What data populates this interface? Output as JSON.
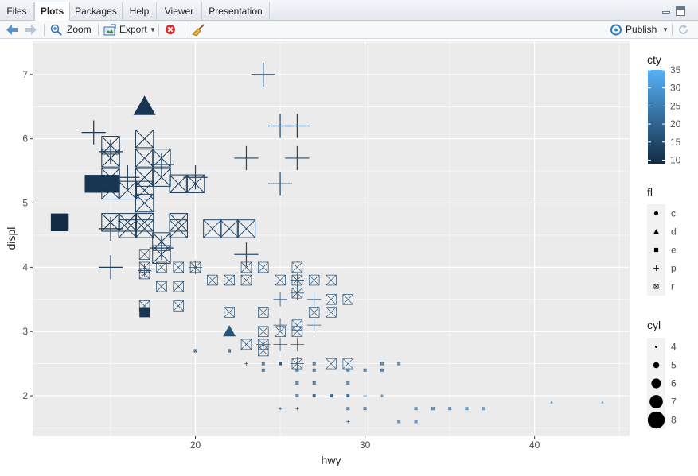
{
  "tabs": [
    {
      "label": "Files",
      "active": false
    },
    {
      "label": "Plots",
      "active": true
    },
    {
      "label": "Packages",
      "active": false
    },
    {
      "label": "Help",
      "active": false
    },
    {
      "label": "Viewer",
      "active": false
    },
    {
      "label": "Presentation",
      "active": false
    }
  ],
  "toolbar": {
    "zoom_label": "Zoom",
    "export_label": "Export",
    "publish_label": "Publish"
  },
  "colors": {
    "panel_bg": "#ebebeb",
    "grid": "#ffffff",
    "point_stroke": "#213f5c",
    "gradient_low": "#132b43",
    "gradient_high": "#56b1f7"
  },
  "chart_data": {
    "type": "scatter",
    "xlabel": "hwy",
    "ylabel": "displ",
    "xlim": [
      10.4,
      45.6
    ],
    "ylim": [
      1.37,
      7.53
    ],
    "xticks": [
      20,
      30,
      40
    ],
    "yticks": [
      2,
      3,
      4,
      5,
      6,
      7
    ],
    "grid": true,
    "legend_placement": "right",
    "color_legend": {
      "title": "cty",
      "ticks": [
        10,
        15,
        20,
        25,
        30,
        35
      ],
      "range": [
        9,
        35
      ]
    },
    "shape_legend": {
      "title": "fl",
      "entries": [
        {
          "label": "c",
          "shape": "circle"
        },
        {
          "label": "d",
          "shape": "triangle"
        },
        {
          "label": "e",
          "shape": "square"
        },
        {
          "label": "p",
          "shape": "plus"
        },
        {
          "label": "r",
          "shape": "square-x"
        }
      ]
    },
    "size_legend": {
      "title": "cyl",
      "entries": [
        4,
        5,
        6,
        7,
        8
      ]
    },
    "points": [
      {
        "x": 24,
        "y": 7.0,
        "cty": 15,
        "fl": "p",
        "cyl": 8
      },
      {
        "x": 17,
        "y": 6.5,
        "cty": 11,
        "fl": "d",
        "cyl": 8
      },
      {
        "x": 25,
        "y": 6.2,
        "cty": 16,
        "fl": "p",
        "cyl": 8
      },
      {
        "x": 26,
        "y": 6.2,
        "cty": 15,
        "fl": "p",
        "cyl": 8
      },
      {
        "x": 14,
        "y": 6.1,
        "cty": 12,
        "fl": "p",
        "cyl": 8
      },
      {
        "x": 17,
        "y": 6.0,
        "cty": 12,
        "fl": "r",
        "cyl": 8
      },
      {
        "x": 15,
        "y": 5.9,
        "cty": 11,
        "fl": "r",
        "cyl": 8
      },
      {
        "x": 15,
        "y": 5.7,
        "cty": 11,
        "fl": "r",
        "cyl": 8
      },
      {
        "x": 15,
        "y": 5.8,
        "cty": 12,
        "fl": "p",
        "cyl": 8
      },
      {
        "x": 17,
        "y": 5.7,
        "cty": 13,
        "fl": "r",
        "cyl": 8
      },
      {
        "x": 18,
        "y": 5.7,
        "cty": 13,
        "fl": "r",
        "cyl": 8
      },
      {
        "x": 18,
        "y": 5.6,
        "cty": 13,
        "fl": "p",
        "cyl": 8
      },
      {
        "x": 23,
        "y": 5.7,
        "cty": 15,
        "fl": "p",
        "cyl": 8
      },
      {
        "x": 26,
        "y": 5.7,
        "cty": 16,
        "fl": "p",
        "cyl": 8
      },
      {
        "x": 14,
        "y": 5.3,
        "cty": 11,
        "fl": "e",
        "cyl": 8
      },
      {
        "x": 15,
        "y": 5.3,
        "cty": 11,
        "fl": "e",
        "cyl": 8
      },
      {
        "x": 15,
        "y": 5.4,
        "cty": 12,
        "fl": "r",
        "cyl": 8
      },
      {
        "x": 15,
        "y": 5.2,
        "cty": 12,
        "fl": "r",
        "cyl": 8
      },
      {
        "x": 16,
        "y": 5.2,
        "cty": 12,
        "fl": "r",
        "cyl": 8
      },
      {
        "x": 16,
        "y": 5.4,
        "cty": 12,
        "fl": "p",
        "cyl": 8
      },
      {
        "x": 17,
        "y": 5.4,
        "cty": 12,
        "fl": "r",
        "cyl": 8
      },
      {
        "x": 17,
        "y": 5.2,
        "cty": 12,
        "fl": "r",
        "cyl": 8
      },
      {
        "x": 17,
        "y": 5.0,
        "cty": 13,
        "fl": "r",
        "cyl": 8
      },
      {
        "x": 18,
        "y": 5.4,
        "cty": 12,
        "fl": "r",
        "cyl": 8
      },
      {
        "x": 19,
        "y": 5.3,
        "cty": 13,
        "fl": "r",
        "cyl": 8
      },
      {
        "x": 20,
        "y": 5.3,
        "cty": 14,
        "fl": "r",
        "cyl": 8
      },
      {
        "x": 20,
        "y": 5.4,
        "cty": 14,
        "fl": "p",
        "cyl": 8
      },
      {
        "x": 25,
        "y": 5.3,
        "cty": 16,
        "fl": "p",
        "cyl": 8
      },
      {
        "x": 12,
        "y": 4.7,
        "cty": 9,
        "fl": "e",
        "cyl": 8
      },
      {
        "x": 15,
        "y": 4.7,
        "cty": 11,
        "fl": "r",
        "cyl": 8
      },
      {
        "x": 15,
        "y": 4.6,
        "cty": 11,
        "fl": "p",
        "cyl": 8
      },
      {
        "x": 16,
        "y": 4.7,
        "cty": 12,
        "fl": "r",
        "cyl": 8
      },
      {
        "x": 16,
        "y": 4.6,
        "cty": 12,
        "fl": "r",
        "cyl": 8
      },
      {
        "x": 17,
        "y": 4.7,
        "cty": 12,
        "fl": "r",
        "cyl": 8
      },
      {
        "x": 17,
        "y": 4.6,
        "cty": 13,
        "fl": "r",
        "cyl": 8
      },
      {
        "x": 19,
        "y": 4.7,
        "cty": 13,
        "fl": "r",
        "cyl": 8
      },
      {
        "x": 19,
        "y": 4.6,
        "cty": 13,
        "fl": "r",
        "cyl": 8
      },
      {
        "x": 21,
        "y": 4.6,
        "cty": 15,
        "fl": "r",
        "cyl": 8
      },
      {
        "x": 22,
        "y": 4.6,
        "cty": 15,
        "fl": "r",
        "cyl": 8
      },
      {
        "x": 23,
        "y": 4.6,
        "cty": 15,
        "fl": "r",
        "cyl": 8
      },
      {
        "x": 18,
        "y": 4.4,
        "cty": 13,
        "fl": "r",
        "cyl": 8
      },
      {
        "x": 18,
        "y": 4.2,
        "cty": 14,
        "fl": "r",
        "cyl": 8
      },
      {
        "x": 18,
        "y": 4.3,
        "cty": 14,
        "fl": "p",
        "cyl": 8
      },
      {
        "x": 15,
        "y": 4.0,
        "cty": 13,
        "fl": "p",
        "cyl": 8
      },
      {
        "x": 23,
        "y": 4.2,
        "cty": 16,
        "fl": "p",
        "cyl": 8
      },
      {
        "x": 17,
        "y": 4.2,
        "cty": 14,
        "fl": "r",
        "cyl": 6
      },
      {
        "x": 17,
        "y": 4.0,
        "cty": 14,
        "fl": "r",
        "cyl": 6
      },
      {
        "x": 17,
        "y": 3.9,
        "cty": 14,
        "fl": "r",
        "cyl": 6
      },
      {
        "x": 17,
        "y": 3.95,
        "cty": 14,
        "fl": "p",
        "cyl": 6
      },
      {
        "x": 18,
        "y": 4.0,
        "cty": 15,
        "fl": "r",
        "cyl": 6
      },
      {
        "x": 19,
        "y": 4.0,
        "cty": 15,
        "fl": "r",
        "cyl": 6
      },
      {
        "x": 20,
        "y": 4.0,
        "cty": 16,
        "fl": "r",
        "cyl": 6
      },
      {
        "x": 20,
        "y": 4.0,
        "cty": 16,
        "fl": "p",
        "cyl": 6
      },
      {
        "x": 23,
        "y": 4.0,
        "cty": 17,
        "fl": "r",
        "cyl": 6
      },
      {
        "x": 24,
        "y": 4.0,
        "cty": 17,
        "fl": "r",
        "cyl": 6
      },
      {
        "x": 26,
        "y": 4.0,
        "cty": 18,
        "fl": "r",
        "cyl": 6
      },
      {
        "x": 18,
        "y": 3.7,
        "cty": 15,
        "fl": "r",
        "cyl": 6
      },
      {
        "x": 19,
        "y": 3.7,
        "cty": 15,
        "fl": "r",
        "cyl": 6
      },
      {
        "x": 21,
        "y": 3.8,
        "cty": 16,
        "fl": "r",
        "cyl": 6
      },
      {
        "x": 22,
        "y": 3.8,
        "cty": 16,
        "fl": "r",
        "cyl": 6
      },
      {
        "x": 23,
        "y": 3.8,
        "cty": 16,
        "fl": "r",
        "cyl": 6
      },
      {
        "x": 25,
        "y": 3.8,
        "cty": 17,
        "fl": "r",
        "cyl": 6
      },
      {
        "x": 26,
        "y": 3.8,
        "cty": 17,
        "fl": "r",
        "cyl": 6
      },
      {
        "x": 26,
        "y": 3.8,
        "cty": 17,
        "fl": "p",
        "cyl": 6
      },
      {
        "x": 26,
        "y": 3.6,
        "cty": 17,
        "fl": "r",
        "cyl": 6
      },
      {
        "x": 26,
        "y": 3.6,
        "cty": 17,
        "fl": "p",
        "cyl": 6
      },
      {
        "x": 27,
        "y": 3.8,
        "cty": 18,
        "fl": "r",
        "cyl": 6
      },
      {
        "x": 28,
        "y": 3.8,
        "cty": 18,
        "fl": "r",
        "cyl": 6
      },
      {
        "x": 28,
        "y": 3.5,
        "cty": 18,
        "fl": "r",
        "cyl": 6
      },
      {
        "x": 29,
        "y": 3.5,
        "cty": 19,
        "fl": "r",
        "cyl": 6
      },
      {
        "x": 25,
        "y": 3.5,
        "cty": 17,
        "fl": "p",
        "cyl": 6
      },
      {
        "x": 27,
        "y": 3.5,
        "cty": 18,
        "fl": "p",
        "cyl": 6
      },
      {
        "x": 17,
        "y": 3.4,
        "cty": 15,
        "fl": "r",
        "cyl": 6
      },
      {
        "x": 17,
        "y": 3.3,
        "cty": 11,
        "fl": "e",
        "cyl": 6
      },
      {
        "x": 19,
        "y": 3.4,
        "cty": 15,
        "fl": "r",
        "cyl": 6
      },
      {
        "x": 22,
        "y": 3.3,
        "cty": 17,
        "fl": "r",
        "cyl": 6
      },
      {
        "x": 24,
        "y": 3.3,
        "cty": 17,
        "fl": "r",
        "cyl": 6
      },
      {
        "x": 27,
        "y": 3.3,
        "cty": 18,
        "fl": "r",
        "cyl": 6
      },
      {
        "x": 28,
        "y": 3.3,
        "cty": 18,
        "fl": "r",
        "cyl": 6
      },
      {
        "x": 22,
        "y": 3.0,
        "cty": 17,
        "fl": "d",
        "cyl": 6
      },
      {
        "x": 24,
        "y": 3.0,
        "cty": 17,
        "fl": "r",
        "cyl": 6
      },
      {
        "x": 25,
        "y": 3.0,
        "cty": 17,
        "fl": "r",
        "cyl": 6
      },
      {
        "x": 26,
        "y": 3.0,
        "cty": 18,
        "fl": "r",
        "cyl": 6
      },
      {
        "x": 26,
        "y": 3.1,
        "cty": 18,
        "fl": "r",
        "cyl": 6
      },
      {
        "x": 25,
        "y": 3.1,
        "cty": 17,
        "fl": "p",
        "cyl": 6
      },
      {
        "x": 27,
        "y": 3.1,
        "cty": 18,
        "fl": "p",
        "cyl": 6
      },
      {
        "x": 23,
        "y": 2.8,
        "cty": 17,
        "fl": "r",
        "cyl": 6
      },
      {
        "x": 24,
        "y": 2.8,
        "cty": 18,
        "fl": "r",
        "cyl": 6
      },
      {
        "x": 24,
        "y": 2.7,
        "cty": 18,
        "fl": "r",
        "cyl": 6
      },
      {
        "x": 24,
        "y": 2.8,
        "cty": 18,
        "fl": "p",
        "cyl": 6
      },
      {
        "x": 25,
        "y": 2.8,
        "cty": 18,
        "fl": "p",
        "cyl": 6
      },
      {
        "x": 26,
        "y": 2.8,
        "cty": 18,
        "fl": "p",
        "cyl": 6
      },
      {
        "x": 26,
        "y": 2.5,
        "cty": 18,
        "fl": "r",
        "cyl": 6
      },
      {
        "x": 26,
        "y": 2.5,
        "cty": 18,
        "fl": "p",
        "cyl": 6
      },
      {
        "x": 28,
        "y": 2.5,
        "cty": 19,
        "fl": "r",
        "cyl": 6
      },
      {
        "x": 29,
        "y": 2.5,
        "cty": 20,
        "fl": "r",
        "cyl": 6
      },
      {
        "x": 20,
        "y": 2.7,
        "cty": 15,
        "fl": "r",
        "cyl": 4
      },
      {
        "x": 22,
        "y": 2.7,
        "cty": 16,
        "fl": "r",
        "cyl": 4
      },
      {
        "x": 23,
        "y": 2.5,
        "cty": 18,
        "fl": "p",
        "cyl": 4
      },
      {
        "x": 24,
        "y": 2.5,
        "cty": 19,
        "fl": "r",
        "cyl": 4
      },
      {
        "x": 25,
        "y": 2.5,
        "cty": 19,
        "fl": "r",
        "cyl": 4
      },
      {
        "x": 25,
        "y": 2.5,
        "cty": 19,
        "fl": "c",
        "cyl": 4
      },
      {
        "x": 27,
        "y": 2.5,
        "cty": 20,
        "fl": "r",
        "cyl": 4
      },
      {
        "x": 30,
        "y": 2.4,
        "cty": 21,
        "fl": "r",
        "cyl": 4
      },
      {
        "x": 31,
        "y": 2.4,
        "cty": 21,
        "fl": "r",
        "cyl": 4
      },
      {
        "x": 31,
        "y": 2.5,
        "cty": 21,
        "fl": "r",
        "cyl": 4
      },
      {
        "x": 32,
        "y": 2.5,
        "cty": 22,
        "fl": "r",
        "cyl": 4
      },
      {
        "x": 24,
        "y": 2.4,
        "cty": 19,
        "fl": "r",
        "cyl": 4
      },
      {
        "x": 26,
        "y": 2.4,
        "cty": 20,
        "fl": "r",
        "cyl": 4
      },
      {
        "x": 27,
        "y": 2.4,
        "cty": 20,
        "fl": "r",
        "cyl": 4
      },
      {
        "x": 29,
        "y": 2.4,
        "cty": 21,
        "fl": "r",
        "cyl": 4
      },
      {
        "x": 26,
        "y": 2.2,
        "cty": 20,
        "fl": "r",
        "cyl": 4
      },
      {
        "x": 27,
        "y": 2.2,
        "cty": 20,
        "fl": "r",
        "cyl": 4
      },
      {
        "x": 29,
        "y": 2.2,
        "cty": 21,
        "fl": "r",
        "cyl": 4
      },
      {
        "x": 26,
        "y": 2.0,
        "cty": 20,
        "fl": "r",
        "cyl": 4
      },
      {
        "x": 27,
        "y": 2.0,
        "cty": 20,
        "fl": "r",
        "cyl": 4
      },
      {
        "x": 27,
        "y": 2.0,
        "cty": 21,
        "fl": "c",
        "cyl": 4
      },
      {
        "x": 28,
        "y": 2.0,
        "cty": 21,
        "fl": "r",
        "cyl": 4
      },
      {
        "x": 28,
        "y": 2.0,
        "cty": 21,
        "fl": "c",
        "cyl": 4
      },
      {
        "x": 29,
        "y": 2.0,
        "cty": 21,
        "fl": "r",
        "cyl": 4
      },
      {
        "x": 29,
        "y": 2.0,
        "cty": 21,
        "fl": "c",
        "cyl": 4
      },
      {
        "x": 30,
        "y": 2.0,
        "cty": 22,
        "fl": "p",
        "cyl": 4
      },
      {
        "x": 31,
        "y": 2.0,
        "cty": 22,
        "fl": "p",
        "cyl": 4
      },
      {
        "x": 25,
        "y": 1.8,
        "cty": 19,
        "fl": "p",
        "cyl": 4
      },
      {
        "x": 26,
        "y": 1.8,
        "cty": 19,
        "fl": "p",
        "cyl": 4
      },
      {
        "x": 29,
        "y": 1.8,
        "cty": 21,
        "fl": "r",
        "cyl": 4
      },
      {
        "x": 30,
        "y": 1.8,
        "cty": 22,
        "fl": "r",
        "cyl": 4
      },
      {
        "x": 33,
        "y": 1.8,
        "cty": 24,
        "fl": "r",
        "cyl": 4
      },
      {
        "x": 34,
        "y": 1.8,
        "cty": 24,
        "fl": "r",
        "cyl": 4
      },
      {
        "x": 35,
        "y": 1.8,
        "cty": 25,
        "fl": "r",
        "cyl": 4
      },
      {
        "x": 36,
        "y": 1.8,
        "cty": 26,
        "fl": "r",
        "cyl": 4
      },
      {
        "x": 37,
        "y": 1.8,
        "cty": 28,
        "fl": "r",
        "cyl": 4
      },
      {
        "x": 29,
        "y": 1.6,
        "cty": 21,
        "fl": "p",
        "cyl": 4
      },
      {
        "x": 32,
        "y": 1.6,
        "cty": 24,
        "fl": "r",
        "cyl": 4
      },
      {
        "x": 33,
        "y": 1.6,
        "cty": 24,
        "fl": "r",
        "cyl": 4
      },
      {
        "x": 41,
        "y": 1.9,
        "cty": 33,
        "fl": "d",
        "cyl": 4
      },
      {
        "x": 44,
        "y": 1.9,
        "cty": 35,
        "fl": "d",
        "cyl": 4
      }
    ]
  }
}
